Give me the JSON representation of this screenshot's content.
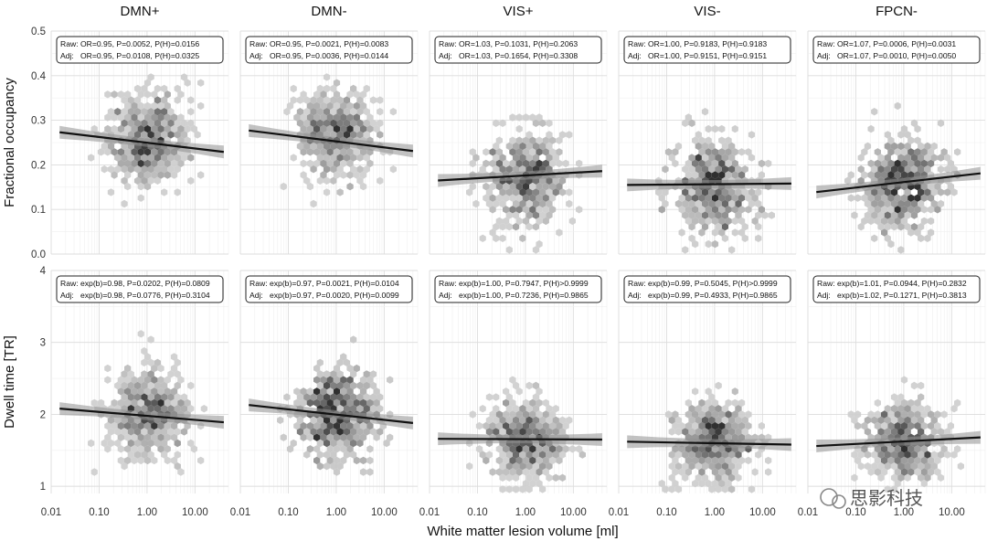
{
  "watermark": {
    "text": "思影科技"
  },
  "chart_data": {
    "type": "scatter",
    "subtype": "hexbin-facet-grid-with-regression",
    "xlabel": "White matter lesion volume [ml]",
    "xscale": "log10",
    "xlim": [
      0.01,
      50
    ],
    "x_ticks": [
      {
        "value": 0.01,
        "label": "0.01"
      },
      {
        "value": 0.1,
        "label": "0.10"
      },
      {
        "value": 1,
        "label": "1.00"
      },
      {
        "value": 10,
        "label": "10.00"
      }
    ],
    "columns": [
      "DMN+",
      "DMN-",
      "VIS+",
      "VIS-",
      "FPCN-"
    ],
    "rows": [
      {
        "ylabel": "Fractional occupancy",
        "ylim": [
          0,
          0.5
        ],
        "y_ticks": [
          {
            "value": 0.0,
            "label": "0.0"
          },
          {
            "value": 0.1,
            "label": "0.1"
          },
          {
            "value": 0.2,
            "label": "0.2"
          },
          {
            "value": 0.3,
            "label": "0.3"
          },
          {
            "value": 0.4,
            "label": "0.4"
          },
          {
            "value": 0.5,
            "label": "0.5"
          }
        ],
        "panels": [
          {
            "title": "DMN+",
            "stats": [
              "Raw: OR=0.95, P=0.0052, P(H)=0.0156",
              "Adj:   OR=0.95, P=0.0108, P(H)=0.0325"
            ],
            "fit": {
              "x": [
                0.015,
                40
              ],
              "y": [
                0.273,
                0.229
              ]
            },
            "cloud": {
              "center": 0.26,
              "spread": 0.05
            }
          },
          {
            "title": "DMN-",
            "stats": [
              "Raw: OR=0.95, P=0.0021, P(H)=0.0083",
              "Adj:   OR=0.95, P=0.0036, P(H)=0.0144"
            ],
            "fit": {
              "x": [
                0.015,
                40
              ],
              "y": [
                0.277,
                0.231
              ]
            },
            "cloud": {
              "center": 0.27,
              "spread": 0.05
            }
          },
          {
            "title": "VIS+",
            "stats": [
              "Raw: OR=1.03, P=0.1031, P(H)=0.2063",
              "Adj:   OR=1.03, P=0.1654, P(H)=0.3308"
            ],
            "fit": {
              "x": [
                0.015,
                40
              ],
              "y": [
                0.165,
                0.186
              ]
            },
            "cloud": {
              "center": 0.17,
              "spread": 0.055
            }
          },
          {
            "title": "VIS-",
            "stats": [
              "Raw: OR=1.00, P=0.9183, P(H)=0.9183",
              "Adj:   OR=1.00, P=0.9151, P(H)=0.9151"
            ],
            "fit": {
              "x": [
                0.015,
                40
              ],
              "y": [
                0.155,
                0.158
              ]
            },
            "cloud": {
              "center": 0.15,
              "spread": 0.055
            }
          },
          {
            "title": "FPCN-",
            "stats": [
              "Raw: OR=1.07, P=0.0006, P(H)=0.0031",
              "Adj:   OR=1.07, P=0.0010, P(H)=0.0050"
            ],
            "fit": {
              "x": [
                0.015,
                40
              ],
              "y": [
                0.139,
                0.181
              ]
            },
            "cloud": {
              "center": 0.16,
              "spread": 0.05
            }
          }
        ]
      },
      {
        "ylabel": "Dwell time [TR]",
        "ylim": [
          0.9,
          4
        ],
        "y_ticks": [
          {
            "value": 1,
            "label": "1"
          },
          {
            "value": 2,
            "label": "2"
          },
          {
            "value": 3,
            "label": "3"
          },
          {
            "value": 4,
            "label": "4"
          }
        ],
        "panels": [
          {
            "title": "DMN+",
            "stats": [
              "Raw: exp(b)=0.98, P=0.0202, P(H)=0.0809",
              "Adj:   exp(b)=0.98, P=0.0776, P(H)=0.3104"
            ],
            "fit": {
              "x": [
                0.015,
                40
              ],
              "y": [
                2.08,
                1.89
              ]
            },
            "cloud": {
              "center": 2.0,
              "spread": 0.3
            }
          },
          {
            "title": "DMN-",
            "stats": [
              "Raw: exp(b)=0.97, P=0.0021, P(H)=0.0104",
              "Adj:   exp(b)=0.97, P=0.0020, P(H)=0.0099"
            ],
            "fit": {
              "x": [
                0.015,
                40
              ],
              "y": [
                2.13,
                1.88
              ]
            },
            "cloud": {
              "center": 2.0,
              "spread": 0.3
            }
          },
          {
            "title": "VIS+",
            "stats": [
              "Raw: exp(b)=1.00, P=0.7947, P(H)>0.9999",
              "Adj:   exp(b)=1.00, P=0.7236, P(H)=0.9865"
            ],
            "fit": {
              "x": [
                0.015,
                40
              ],
              "y": [
                1.66,
                1.65
              ]
            },
            "cloud": {
              "center": 1.65,
              "spread": 0.28
            }
          },
          {
            "title": "VIS-",
            "stats": [
              "Raw: exp(b)=0.99, P=0.5045, P(H)>0.9999",
              "Adj:   exp(b)=0.99, P=0.4933, P(H)=0.9865"
            ],
            "fit": {
              "x": [
                0.015,
                40
              ],
              "y": [
                1.62,
                1.58
              ]
            },
            "cloud": {
              "center": 1.62,
              "spread": 0.28
            }
          },
          {
            "title": "FPCN-",
            "stats": [
              "Raw: exp(b)=1.01, P=0.0944, P(H)=0.2832",
              "Adj:   exp(b)=1.02, P=0.1271, P(H)=0.3813"
            ],
            "fit": {
              "x": [
                0.015,
                40
              ],
              "y": [
                1.56,
                1.68
              ]
            },
            "cloud": {
              "center": 1.62,
              "spread": 0.28
            }
          }
        ]
      }
    ],
    "grid": true,
    "legend": "none"
  }
}
